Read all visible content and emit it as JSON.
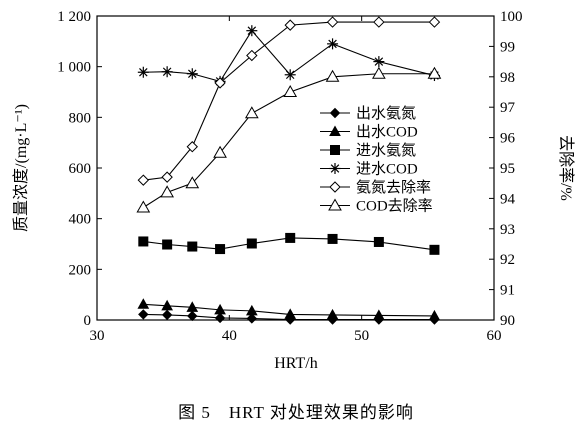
{
  "chart_data": {
    "type": "line",
    "caption": "图 5　HRT 对处理效果的影响",
    "xlabel": "HRT/h",
    "ylabel_left": "质量浓度/(mg·L⁻¹)",
    "ylabel_right": "去除率/%",
    "xlim": [
      30,
      60
    ],
    "ylim_left": [
      0,
      1200
    ],
    "ylim_right": [
      90,
      100
    ],
    "x_ticks": [
      "30",
      "40",
      "50",
      "60"
    ],
    "y_left_ticks": [
      "0",
      "200",
      "400",
      "600",
      "800",
      "1 000",
      "1 200"
    ],
    "y_right_ticks": [
      "90",
      "91",
      "92",
      "93",
      "94",
      "95",
      "96",
      "97",
      "98",
      "99",
      "100"
    ],
    "legend_position": "center-right",
    "grid": false,
    "x": [
      33.5,
      35.3,
      37.2,
      39.3,
      41.7,
      44.6,
      47.8,
      51.3,
      55.5
    ],
    "series": [
      {
        "name": "出水氨氮",
        "axis": "left",
        "marker": "diamond-filled",
        "values": [
          22,
          20,
          16,
          8,
          6,
          2,
          2,
          2,
          2
        ]
      },
      {
        "name": "出水COD",
        "axis": "left",
        "marker": "triangle-filled",
        "values": [
          62,
          56,
          50,
          40,
          36,
          22,
          20,
          18,
          16
        ]
      },
      {
        "name": "进水氨氮",
        "axis": "left",
        "marker": "square-filled",
        "values": [
          310,
          298,
          290,
          280,
          302,
          324,
          320,
          308,
          277
        ]
      },
      {
        "name": "进水COD",
        "axis": "left",
        "marker": "star",
        "values": [
          978,
          980,
          972,
          942,
          1142,
          968,
          1090,
          1020,
          965
        ]
      },
      {
        "name": "氨氮去除率",
        "axis": "right",
        "marker": "diamond-open",
        "values": [
          94.6,
          94.7,
          95.7,
          97.8,
          98.7,
          99.7,
          99.8,
          99.8,
          99.8
        ]
      },
      {
        "name": "COD去除率",
        "axis": "right",
        "marker": "triangle-open",
        "values": [
          93.7,
          94.2,
          94.5,
          95.5,
          96.8,
          97.5,
          98.0,
          98.1,
          98.1
        ]
      }
    ]
  }
}
